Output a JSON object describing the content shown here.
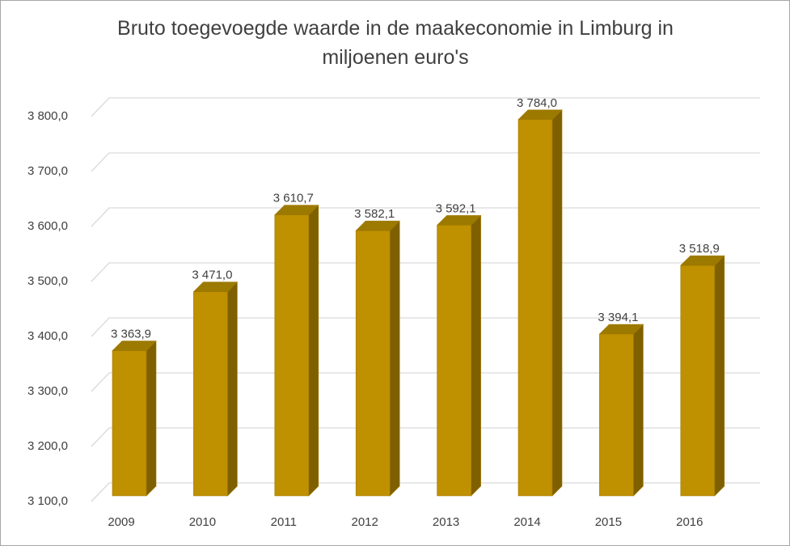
{
  "chart_data": {
    "type": "bar",
    "title": "Bruto toegevoegde waarde in de maakeconomie  in Limburg in miljoenen euro's",
    "categories": [
      "2009",
      "2010",
      "2011",
      "2012",
      "2013",
      "2014",
      "2015",
      "2016"
    ],
    "values": [
      3363.9,
      3471.0,
      3610.7,
      3582.1,
      3592.1,
      3784.0,
      3394.1,
      3518.9
    ],
    "value_labels": [
      "3 363,9",
      "3 471,0",
      "3 610,7",
      "3 582,1",
      "3 592,1",
      "3 784,0",
      "3 394,1",
      "3 518,9"
    ],
    "color": "#bf9000",
    "ylim": [
      3100,
      3800
    ],
    "yticks": [
      {
        "value": 3100,
        "label": "3 100,0"
      },
      {
        "value": 3200,
        "label": "3 200,0"
      },
      {
        "value": 3300,
        "label": "3 300,0"
      },
      {
        "value": 3400,
        "label": "3 400,0"
      },
      {
        "value": 3500,
        "label": "3 500,0"
      },
      {
        "value": 3600,
        "label": "3 600,0"
      },
      {
        "value": 3700,
        "label": "3 700,0"
      },
      {
        "value": 3800,
        "label": "3 800,0"
      }
    ],
    "grid": true
  }
}
